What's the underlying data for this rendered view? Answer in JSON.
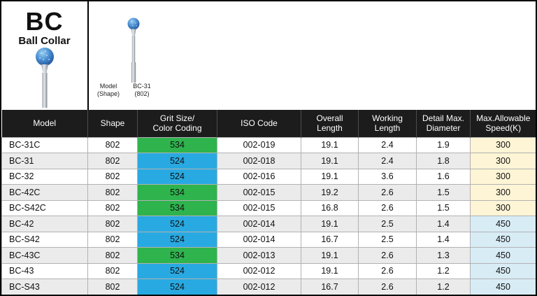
{
  "header": {
    "code": "BC",
    "name": "Ball Collar",
    "shape_label_lines": [
      "Model",
      "(Shape)"
    ],
    "shape_value_lines": [
      "BC-31",
      "(802)"
    ]
  },
  "table": {
    "columns": [
      {
        "lines": [
          "Model"
        ]
      },
      {
        "lines": [
          "Shape"
        ]
      },
      {
        "lines": [
          "Grit Size/",
          "Color Coding"
        ]
      },
      {
        "lines": [
          "ISO Code"
        ]
      },
      {
        "lines": [
          "Overall",
          "Length"
        ]
      },
      {
        "lines": [
          "Working",
          "Length"
        ]
      },
      {
        "lines": [
          "Detail Max.",
          "Diameter"
        ]
      },
      {
        "lines": [
          "Max.Allowable",
          "Speed(K)"
        ]
      }
    ],
    "rows": [
      {
        "model": "BC-31C",
        "shape": "802",
        "grit": "534",
        "grit_color": "green",
        "iso": "002-019",
        "overall_length": "19.1",
        "working_length": "2.4",
        "detail_max_diameter": "1.9",
        "max_speed": "300"
      },
      {
        "model": "BC-31",
        "shape": "802",
        "grit": "524",
        "grit_color": "blue",
        "iso": "002-018",
        "overall_length": "19.1",
        "working_length": "2.4",
        "detail_max_diameter": "1.8",
        "max_speed": "300"
      },
      {
        "model": "BC-32",
        "shape": "802",
        "grit": "524",
        "grit_color": "blue",
        "iso": "002-016",
        "overall_length": "19.1",
        "working_length": "3.6",
        "detail_max_diameter": "1.6",
        "max_speed": "300"
      },
      {
        "model": "BC-42C",
        "shape": "802",
        "grit": "534",
        "grit_color": "green",
        "iso": "002-015",
        "overall_length": "19.2",
        "working_length": "2.6",
        "detail_max_diameter": "1.5",
        "max_speed": "300"
      },
      {
        "model": "BC-S42C",
        "shape": "802",
        "grit": "534",
        "grit_color": "green",
        "iso": "002-015",
        "overall_length": "16.8",
        "working_length": "2.6",
        "detail_max_diameter": "1.5",
        "max_speed": "300"
      },
      {
        "model": "BC-42",
        "shape": "802",
        "grit": "524",
        "grit_color": "blue",
        "iso": "002-014",
        "overall_length": "19.1",
        "working_length": "2.5",
        "detail_max_diameter": "1.4",
        "max_speed": "450"
      },
      {
        "model": "BC-S42",
        "shape": "802",
        "grit": "524",
        "grit_color": "blue",
        "iso": "002-014",
        "overall_length": "16.7",
        "working_length": "2.5",
        "detail_max_diameter": "1.4",
        "max_speed": "450"
      },
      {
        "model": "BC-43C",
        "shape": "802",
        "grit": "534",
        "grit_color": "green",
        "iso": "002-013",
        "overall_length": "19.1",
        "working_length": "2.6",
        "detail_max_diameter": "1.3",
        "max_speed": "450"
      },
      {
        "model": "BC-43",
        "shape": "802",
        "grit": "524",
        "grit_color": "blue",
        "iso": "002-012",
        "overall_length": "19.1",
        "working_length": "2.6",
        "detail_max_diameter": "1.2",
        "max_speed": "450"
      },
      {
        "model": "BC-S43",
        "shape": "802",
        "grit": "524",
        "grit_color": "blue",
        "iso": "002-012",
        "overall_length": "16.7",
        "working_length": "2.6",
        "detail_max_diameter": "1.2",
        "max_speed": "450"
      }
    ]
  },
  "colors": {
    "header_bg": "#1c1c1c",
    "header_text": "#ffffff",
    "grit_green": "#2eb34d",
    "grit_blue": "#29a9e1",
    "speed_300_bg": "#fdf5d5",
    "speed_450_bg": "#d8ecf6",
    "row_alt_bg": "#ebebeb",
    "grid_line": "#b2b2b2"
  }
}
